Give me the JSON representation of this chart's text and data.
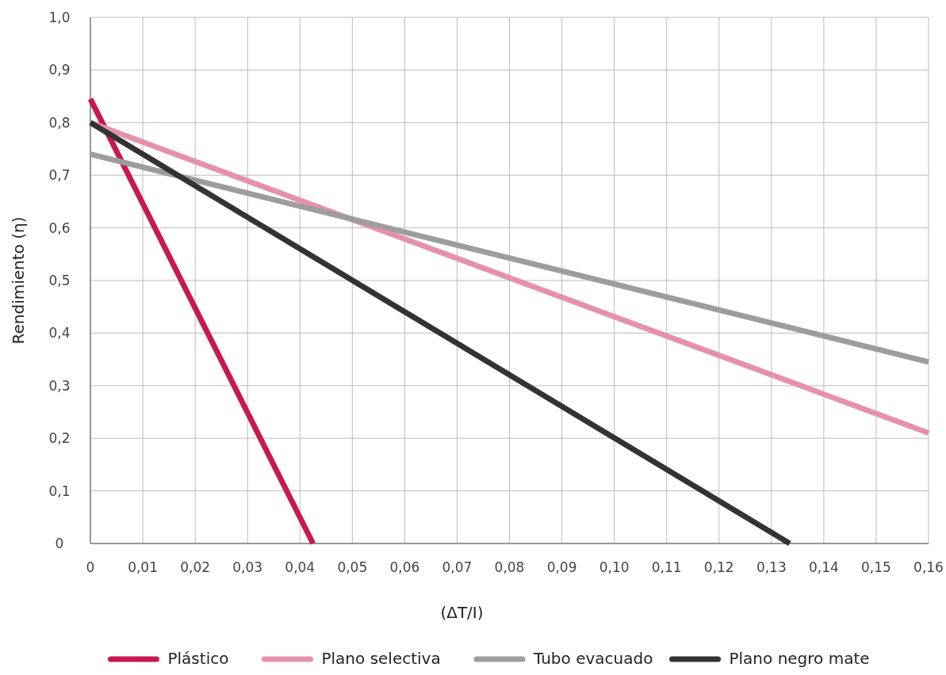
{
  "chart_data": {
    "type": "line",
    "xlabel": "(ΔT/I)",
    "ylabel": "Rendimiento (η)",
    "xlim": [
      0,
      0.16
    ],
    "ylim": [
      0,
      1
    ],
    "xticks": [
      {
        "value": 0,
        "label": "0"
      },
      {
        "value": 0.01,
        "label": "0,01"
      },
      {
        "value": 0.02,
        "label": "0,02"
      },
      {
        "value": 0.03,
        "label": "0,03"
      },
      {
        "value": 0.04,
        "label": "0,04"
      },
      {
        "value": 0.05,
        "label": "0,05"
      },
      {
        "value": 0.06,
        "label": "0,06"
      },
      {
        "value": 0.07,
        "label": "0,07"
      },
      {
        "value": 0.08,
        "label": "0,08"
      },
      {
        "value": 0.09,
        "label": "0,09"
      },
      {
        "value": 0.1,
        "label": "0,10"
      },
      {
        "value": 0.11,
        "label": "0,11"
      },
      {
        "value": 0.12,
        "label": "0,12"
      },
      {
        "value": 0.13,
        "label": "0,13"
      },
      {
        "value": 0.14,
        "label": "0,14"
      },
      {
        "value": 0.15,
        "label": "0,15"
      },
      {
        "value": 0.16,
        "label": "0,16"
      }
    ],
    "yticks": [
      {
        "value": 0,
        "label": "0"
      },
      {
        "value": 0.1,
        "label": "0,1"
      },
      {
        "value": 0.2,
        "label": "0,2"
      },
      {
        "value": 0.3,
        "label": "0,3"
      },
      {
        "value": 0.4,
        "label": "0,4"
      },
      {
        "value": 0.5,
        "label": "0,5"
      },
      {
        "value": 0.6,
        "label": "0,6"
      },
      {
        "value": 0.7,
        "label": "0,7"
      },
      {
        "value": 0.8,
        "label": "0,8"
      },
      {
        "value": 0.9,
        "label": "0,9"
      },
      {
        "value": 1,
        "label": "1,0"
      }
    ],
    "grid": true,
    "legend": "bottom",
    "marker": "none",
    "line_style": "solid",
    "series": [
      {
        "name": "Plástico",
        "color": "#c8194f",
        "x": [
          0,
          0.0425
        ],
        "values": [
          0.845,
          0
        ]
      },
      {
        "name": "Plano selectiva",
        "color": "#e592a9",
        "x": [
          0,
          0.16
        ],
        "values": [
          0.8,
          0.21
        ]
      },
      {
        "name": "Tubo evacuado",
        "color": "#9d9d9d",
        "x": [
          0,
          0.16
        ],
        "values": [
          0.74,
          0.345
        ]
      },
      {
        "name": "Plano negro mate",
        "color": "#333333",
        "x": [
          0,
          0.1335
        ],
        "values": [
          0.8,
          0
        ]
      }
    ]
  }
}
